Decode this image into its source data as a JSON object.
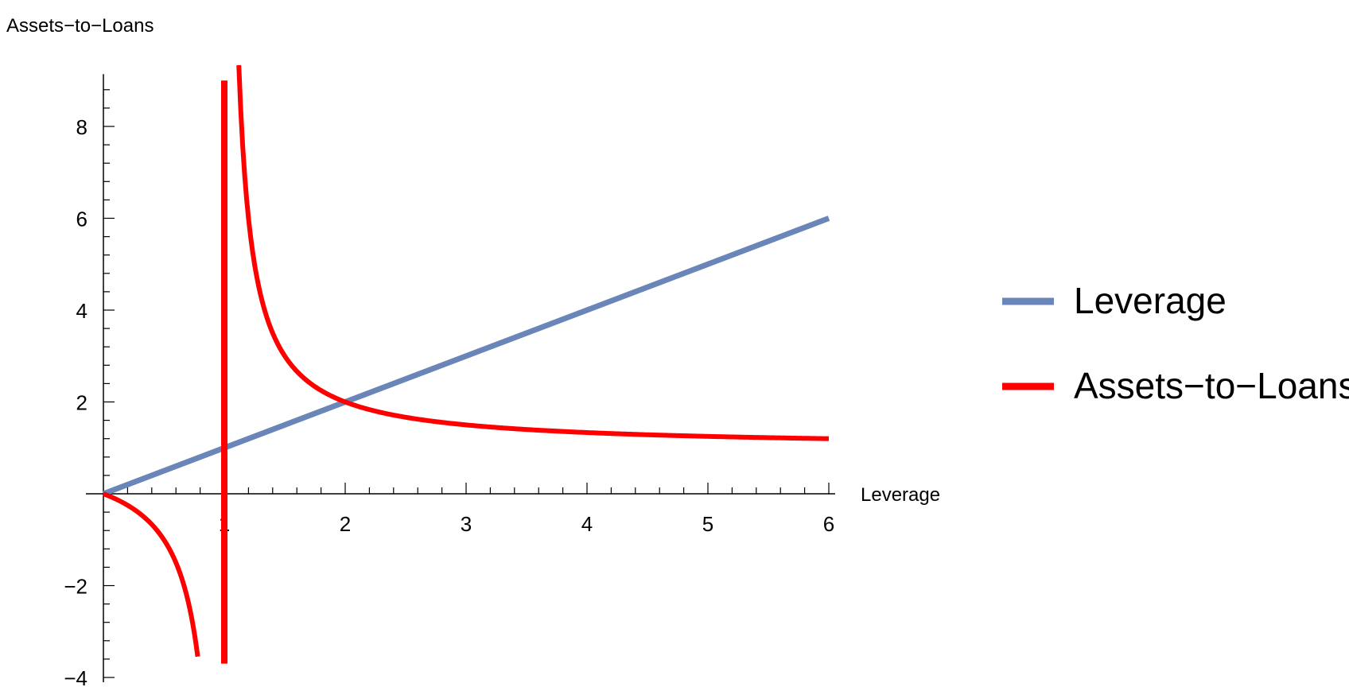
{
  "chart_data": {
    "type": "line",
    "xlabel": "Leverage",
    "ylabel": "Assets−to−Loans",
    "xlim": [
      0,
      6
    ],
    "ylim": [
      -4,
      9
    ],
    "x_ticks": [
      1,
      2,
      3,
      4,
      5,
      6
    ],
    "x_tick_labels": [
      "1",
      "2",
      "3",
      "4",
      "5",
      "6"
    ],
    "y_ticks": [
      -4,
      -2,
      2,
      4,
      6,
      8
    ],
    "y_tick_labels": [
      "−4",
      "−2",
      "2",
      "4",
      "6",
      "8"
    ],
    "legend_position": "right",
    "grid": false,
    "series": [
      {
        "name": "Leverage",
        "color": "#6a86b8",
        "formula": "y = x",
        "x": [
          0,
          6
        ],
        "y": [
          0,
          6
        ]
      },
      {
        "name": "Assets−to−Loans",
        "color": "#ff0000",
        "formula": "y = x / (x - 1)",
        "x": [
          0,
          0.25,
          0.5,
          0.6,
          0.7,
          0.78,
          1.12,
          1.25,
          1.5,
          2,
          2.5,
          3,
          4,
          5,
          6
        ],
        "y": [
          0,
          -0.33,
          -1,
          -1.5,
          -2.33,
          -3.55,
          9.33,
          5,
          3,
          2,
          1.67,
          1.5,
          1.33,
          1.25,
          1.2
        ]
      }
    ]
  }
}
